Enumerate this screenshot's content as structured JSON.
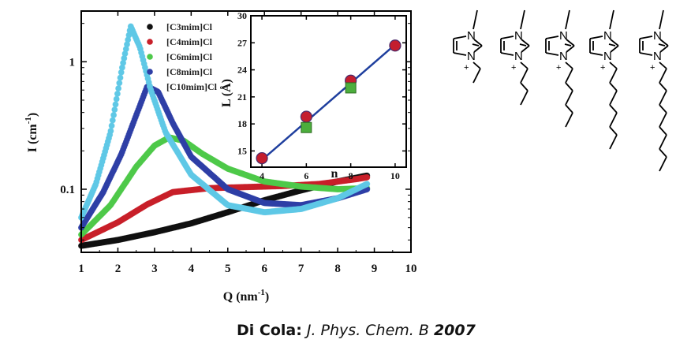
{
  "chart_data": [
    {
      "type": "scatter",
      "title": "",
      "xlabel": "Q (nm",
      "xlabel_sup": "-1",
      "xlabel_close": ")",
      "ylabel": "I (cm",
      "ylabel_sup": "-1",
      "ylabel_close": ")",
      "xlim": [
        1,
        10
      ],
      "ylim": [
        0.032,
        2.5
      ],
      "yscale": "log",
      "x_ticks": [
        "1",
        "2",
        "3",
        "4",
        "5",
        "6",
        "7",
        "8",
        "9",
        "10"
      ],
      "y_ticks": [
        {
          "value": 0.1,
          "label": "0.1"
        },
        {
          "value": 1,
          "label": "1"
        }
      ],
      "legend_position": "top-left",
      "series": [
        {
          "name": "[C3mim]Cl",
          "color": "#111111",
          "x": [
            1.0,
            2.0,
            3.0,
            4.0,
            5.0,
            6.0,
            7.0,
            8.0,
            8.8
          ],
          "y": [
            0.036,
            0.04,
            0.046,
            0.054,
            0.066,
            0.082,
            0.098,
            0.115,
            0.128
          ]
        },
        {
          "name": "[C4mim]Cl",
          "color": "#c8202a",
          "x": [
            1.0,
            2.0,
            2.8,
            3.5,
            4.5,
            5.5,
            6.5,
            7.5,
            8.5,
            8.8
          ],
          "y": [
            0.04,
            0.055,
            0.076,
            0.095,
            0.102,
            0.104,
            0.106,
            0.11,
            0.12,
            0.124
          ]
        },
        {
          "name": "[C6mim]Cl",
          "color": "#4ec94a",
          "x": [
            1.0,
            1.8,
            2.5,
            3.0,
            3.4,
            3.8,
            4.3,
            5.0,
            6.0,
            7.0,
            8.0,
            8.8
          ],
          "y": [
            0.044,
            0.075,
            0.15,
            0.22,
            0.255,
            0.24,
            0.19,
            0.145,
            0.115,
            0.105,
            0.1,
            0.102
          ]
        },
        {
          "name": "[C8mim]Cl",
          "color": "#2e3fa6",
          "x": [
            1.0,
            1.6,
            2.1,
            2.5,
            2.8,
            3.1,
            3.5,
            4.0,
            5.0,
            6.0,
            7.0,
            8.0,
            8.8
          ],
          "y": [
            0.05,
            0.095,
            0.19,
            0.38,
            0.64,
            0.58,
            0.33,
            0.18,
            0.1,
            0.078,
            0.075,
            0.085,
            0.1
          ]
        },
        {
          "name": "[C10mim]Cl",
          "color": "#5fc8e6",
          "x": [
            1.0,
            1.4,
            1.8,
            2.1,
            2.35,
            2.6,
            2.9,
            3.3,
            4.0,
            5.0,
            6.0,
            7.0,
            8.0,
            8.8
          ],
          "y": [
            0.06,
            0.11,
            0.28,
            0.85,
            1.9,
            1.3,
            0.6,
            0.28,
            0.13,
            0.075,
            0.066,
            0.07,
            0.085,
            0.11
          ]
        }
      ]
    },
    {
      "type": "scatter",
      "title": "",
      "xlabel": "n",
      "ylabel": "L (Å)",
      "xlim": [
        3.5,
        10.5
      ],
      "ylim": [
        13.2,
        30
      ],
      "x_ticks": [
        "4",
        "6",
        "8",
        "10"
      ],
      "y_ticks": [
        "15",
        "18",
        "21",
        "24",
        "27",
        "30"
      ],
      "fit_line": {
        "x": [
          4,
          10
        ],
        "y": [
          14.0,
          26.8
        ],
        "color": "#1f3f9e"
      },
      "series": [
        {
          "name": "circles",
          "marker": "circle",
          "color": "#c41e2e",
          "x": [
            4,
            6,
            8,
            10
          ],
          "y": [
            14.2,
            18.8,
            22.8,
            26.7
          ]
        },
        {
          "name": "squares",
          "marker": "square",
          "color": "#4cae3c",
          "x": [
            6,
            8
          ],
          "y": [
            17.6,
            22.0
          ]
        }
      ]
    }
  ],
  "molecule_labels": {
    "nitrogen": "N",
    "charge": "+"
  },
  "chain_counts": [
    2,
    4,
    6,
    8,
    10
  ],
  "citation": {
    "author": "Di Cola:",
    "journal": "J. Phys. Chem. B",
    "year": "2007"
  }
}
